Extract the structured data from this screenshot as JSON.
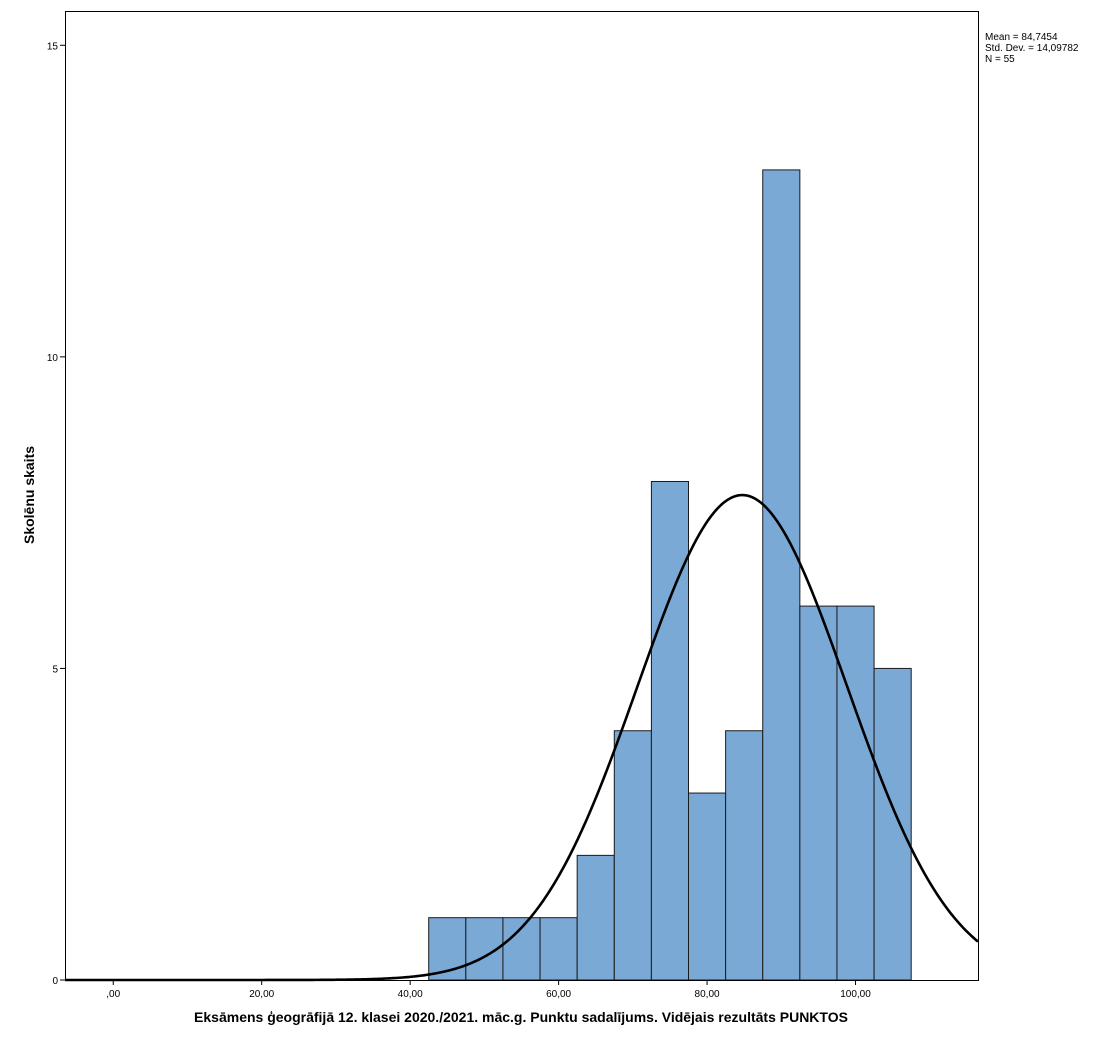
{
  "chart_data": {
    "type": "bar",
    "subtype": "histogram",
    "xlabel": "Eksāmens ģeogrāfijā 12. klasei 2020./2021. māc.g. Punktu sadalījums. Vidējais rezultāts PUNKTOS",
    "ylabel": "Skolēnu skaits",
    "xlim": [
      -6.5,
      116.5
    ],
    "ylim": [
      0,
      15.55
    ],
    "x_ticks": [
      0,
      20,
      40,
      60,
      80,
      100
    ],
    "x_tick_labels": [
      ",00",
      "20,00",
      "40,00",
      "60,00",
      "80,00",
      "100,00"
    ],
    "y_ticks": [
      0,
      5,
      10,
      15
    ],
    "y_tick_labels": [
      "0",
      "5",
      "10",
      "15"
    ],
    "bin_width": 5,
    "bins": [
      {
        "start": 42.5,
        "end": 47.5,
        "count": 1
      },
      {
        "start": 47.5,
        "end": 52.5,
        "count": 1
      },
      {
        "start": 52.5,
        "end": 57.5,
        "count": 1
      },
      {
        "start": 57.5,
        "end": 62.5,
        "count": 1
      },
      {
        "start": 62.5,
        "end": 67.5,
        "count": 2
      },
      {
        "start": 67.5,
        "end": 72.5,
        "count": 4
      },
      {
        "start": 72.5,
        "end": 77.5,
        "count": 8
      },
      {
        "start": 77.5,
        "end": 82.5,
        "count": 3
      },
      {
        "start": 82.5,
        "end": 87.5,
        "count": 4
      },
      {
        "start": 87.5,
        "end": 92.5,
        "count": 13
      },
      {
        "start": 92.5,
        "end": 97.5,
        "count": 6
      },
      {
        "start": 97.5,
        "end": 102.5,
        "count": 6
      },
      {
        "start": 102.5,
        "end": 107.5,
        "count": 5
      }
    ],
    "normal_curve": {
      "mean": 84.7454,
      "std_dev": 14.09782,
      "n": 55
    },
    "stats": {
      "mean_label": "Mean = 84,7454",
      "std_label": "Std. Dev. = 14,09782",
      "n_label": "N = 55"
    },
    "colors": {
      "bar_fill": "#7BA9D6",
      "bar_stroke": "#1A1A1A",
      "curve": "#000000",
      "frame": "#000000"
    }
  }
}
